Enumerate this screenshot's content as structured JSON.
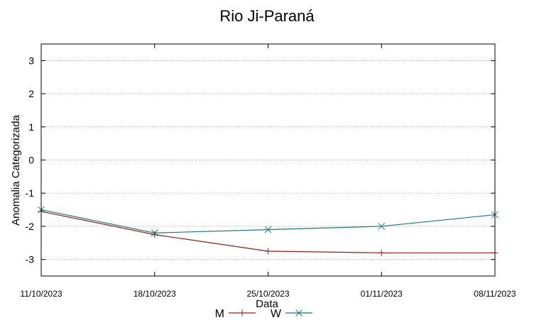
{
  "chart_data": {
    "type": "line",
    "title": "Rio Ji-Paraná",
    "xlabel": "Data",
    "ylabel": "Anomalia Categorizada",
    "x": [
      "11/10/2023",
      "18/10/2023",
      "25/10/2023",
      "01/11/2023",
      "08/11/2023"
    ],
    "ylim": [
      -3.5,
      3.5
    ],
    "yticks": [
      3,
      2,
      1,
      0,
      -1,
      -2,
      -3
    ],
    "ytick_labels": [
      "3",
      "2",
      "1",
      "0",
      "-1",
      "-2",
      "-3"
    ],
    "grid": "horizontal dotted",
    "legend_position": "bottom",
    "series": [
      {
        "name": "M",
        "color": "#a01818",
        "marker": "plus",
        "values": [
          -1.55,
          -2.25,
          -2.75,
          -2.8,
          -2.8
        ]
      },
      {
        "name": "W",
        "color": "#1a7a78",
        "marker": "x",
        "values": [
          -1.5,
          -2.2,
          -2.1,
          -2.0,
          -1.65
        ]
      }
    ]
  }
}
